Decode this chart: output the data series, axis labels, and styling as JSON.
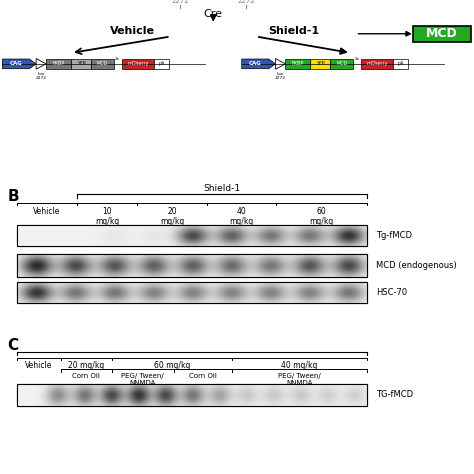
{
  "bg_color": "#ffffff",
  "fig_width": 4.74,
  "fig_height": 4.74,
  "fig_dpi": 100,
  "panel_A": {
    "lox_labels": [
      "2272",
      "2272"
    ],
    "cre_label": "Cre",
    "vehicle_label": "Vehicle",
    "shield1_label": "Shield-1",
    "mcd_box_label": "MCD",
    "mcd_box_color": "#22aa22",
    "arrow_color": "#000000"
  },
  "panel_B": {
    "label": "B",
    "shield1_label": "Shield-1",
    "col_labels": [
      "Vehicle",
      "10\nmg/kg",
      "20\nmg/kg",
      "40\nmg/kg",
      "60\nmg/kg"
    ],
    "blot_labels": [
      "Tg-fMCD",
      "MCD (endogenous)",
      "HSC-70"
    ],
    "num_lanes": 9
  },
  "panel_C": {
    "label": "C",
    "top_labels": [
      "Vehicle",
      "20 mg/kg",
      "60 mg/kg",
      "40 mg/kg"
    ],
    "sub_labels_corn_oil": [
      "Corn Oil",
      "Corn Oil"
    ],
    "sub_labels_peg": [
      "PEG/ Tween/\nNNMDA",
      "PEG/ Tween/\nNNMDA"
    ],
    "blot_label": "TG-fMCD"
  }
}
